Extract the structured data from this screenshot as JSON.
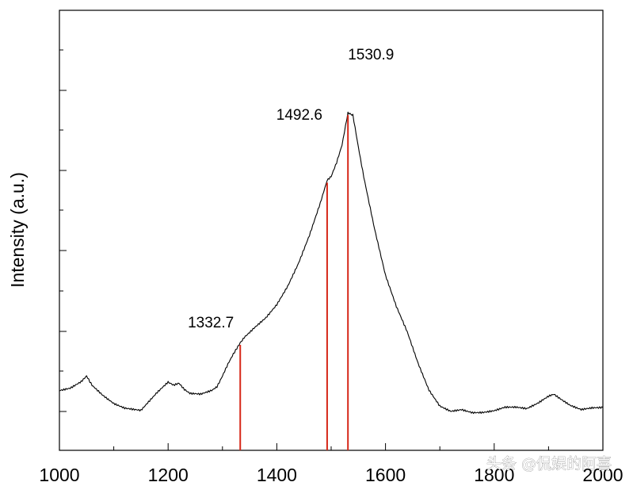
{
  "chart_data": {
    "type": "line",
    "title": "",
    "xlabel": "",
    "ylabel": "Intensity (a.u.)",
    "xlim": [
      1000,
      2000
    ],
    "x_ticks": [
      1000,
      1200,
      1400,
      1600,
      1800,
      2000
    ],
    "y_ticks_shown": false,
    "grid": false,
    "colors": {
      "spectrum": "#000000",
      "markers": "#d62718",
      "axes": "#000000"
    },
    "series": [
      {
        "x": [
          1000,
          1020,
          1040,
          1050,
          1060,
          1080,
          1100,
          1120,
          1140,
          1150,
          1160,
          1180,
          1200,
          1210,
          1220,
          1230,
          1240,
          1260,
          1280,
          1290,
          1300,
          1310,
          1320,
          1332.7,
          1340,
          1360,
          1380,
          1400,
          1420,
          1440,
          1460,
          1480,
          1492.6,
          1500,
          1510,
          1520,
          1530.9,
          1540,
          1550,
          1560,
          1580,
          1600,
          1620,
          1640,
          1660,
          1680,
          1700,
          1720,
          1740,
          1760,
          1780,
          1800,
          1820,
          1840,
          1860,
          1880,
          1900,
          1910,
          1920,
          1940,
          1960,
          1980,
          2000
        ],
        "y": [
          0.061,
          0.067,
          0.085,
          0.101,
          0.075,
          0.047,
          0.025,
          0.013,
          0.009,
          0.007,
          0.024,
          0.057,
          0.085,
          0.076,
          0.081,
          0.063,
          0.052,
          0.05,
          0.061,
          0.072,
          0.103,
          0.137,
          0.166,
          0.195,
          0.213,
          0.242,
          0.268,
          0.304,
          0.355,
          0.42,
          0.499,
          0.591,
          0.654,
          0.667,
          0.707,
          0.757,
          0.845,
          0.842,
          0.752,
          0.667,
          0.518,
          0.387,
          0.298,
          0.226,
          0.137,
          0.062,
          0.018,
          0.004,
          0.009,
          0.0,
          0.0,
          0.004,
          0.013,
          0.013,
          0.009,
          0.025,
          0.046,
          0.052,
          0.041,
          0.021,
          0.009,
          0.013,
          0.013
        ]
      }
    ],
    "peaks": [
      {
        "x": 1332.7,
        "label": "1332.7",
        "y": 0.195
      },
      {
        "x": 1492.6,
        "label": "1492.6",
        "y": 0.654
      },
      {
        "x": 1530.9,
        "label": "1530.9",
        "y": 0.845
      }
    ]
  },
  "watermark": "头条 @侃娱的阿喜"
}
